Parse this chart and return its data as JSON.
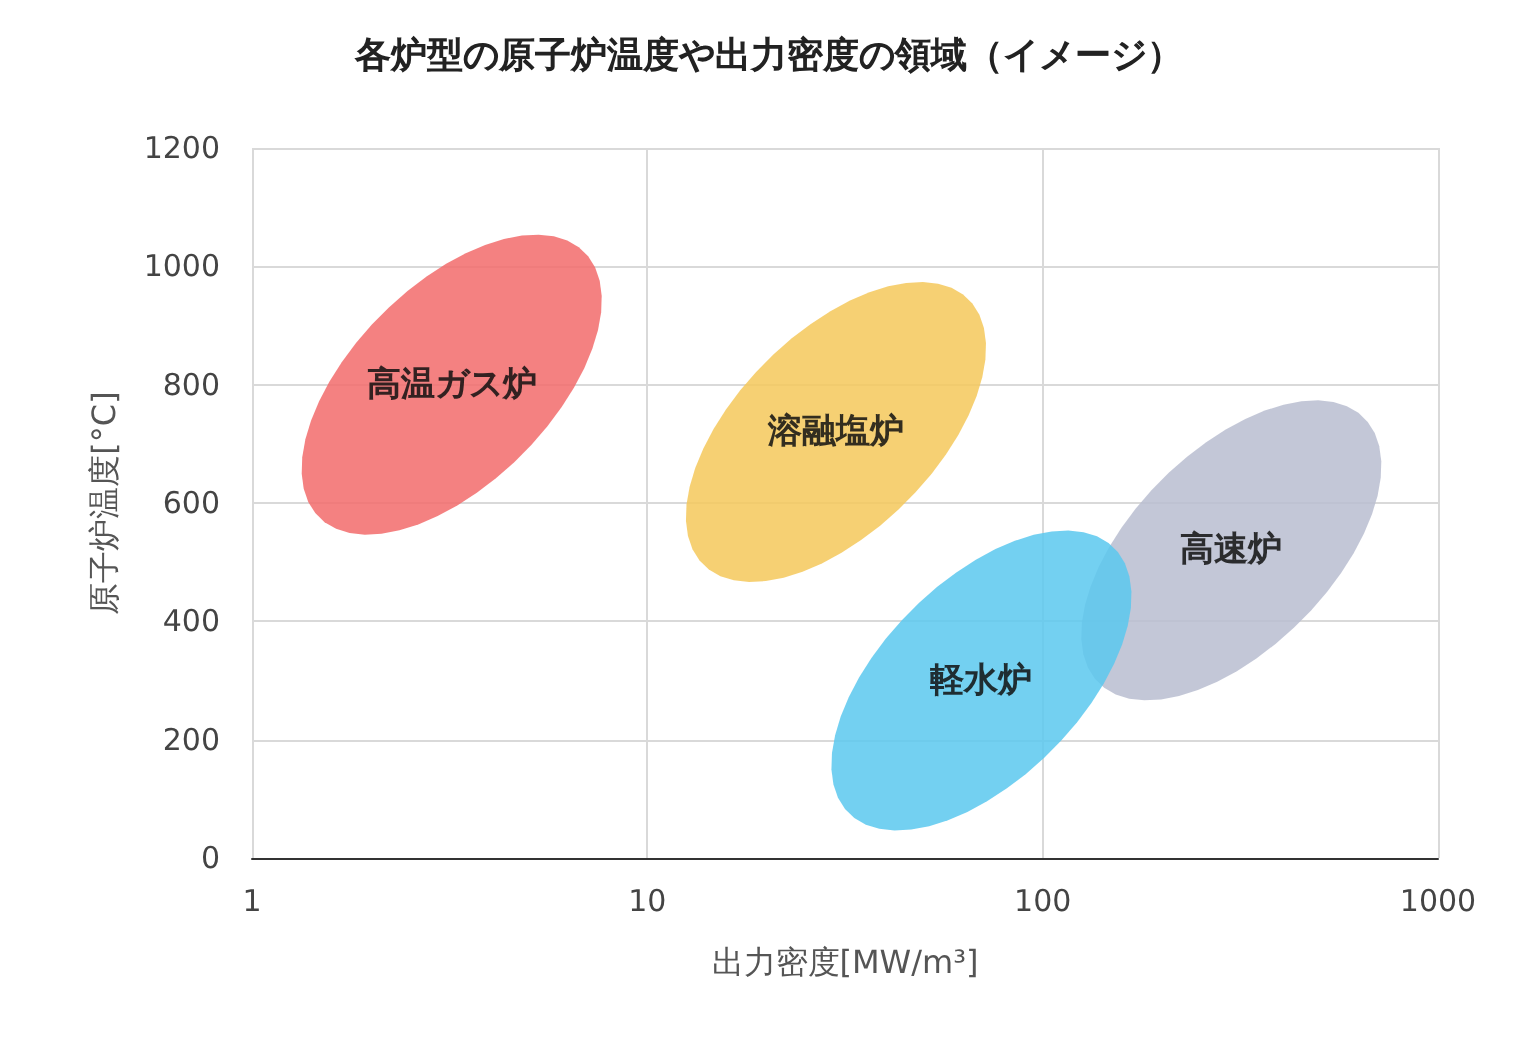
{
  "chart_data": {
    "type": "scatter",
    "title": "各炉型の原子炉温度や出力密度の領域（イメージ）",
    "xlabel": "出力密度[MW/m³]",
    "ylabel": "原子炉温度[°C]",
    "log": "x",
    "xlim": [
      1,
      1000
    ],
    "xticks": [
      1,
      10,
      100,
      1000
    ],
    "ylim": [
      0,
      1200
    ],
    "yticks": [
      0,
      200,
      400,
      600,
      800,
      1000,
      1200
    ],
    "grid": true,
    "legend": false,
    "series": [
      {
        "name": "高温ガス炉",
        "color": "#f26b6b",
        "x": [
          3.2
        ],
        "values": [
          800
        ]
      },
      {
        "name": "溶融塩炉",
        "color": "#f5c85a",
        "x": [
          30
        ],
        "values": [
          720
        ]
      },
      {
        "name": "高速炉",
        "color": "#b8bdd0",
        "x": [
          300
        ],
        "values": [
          520
        ]
      },
      {
        "name": "軽水炉",
        "color": "#5bc8ee",
        "x": [
          70
        ],
        "values": [
          300
        ]
      }
    ]
  }
}
